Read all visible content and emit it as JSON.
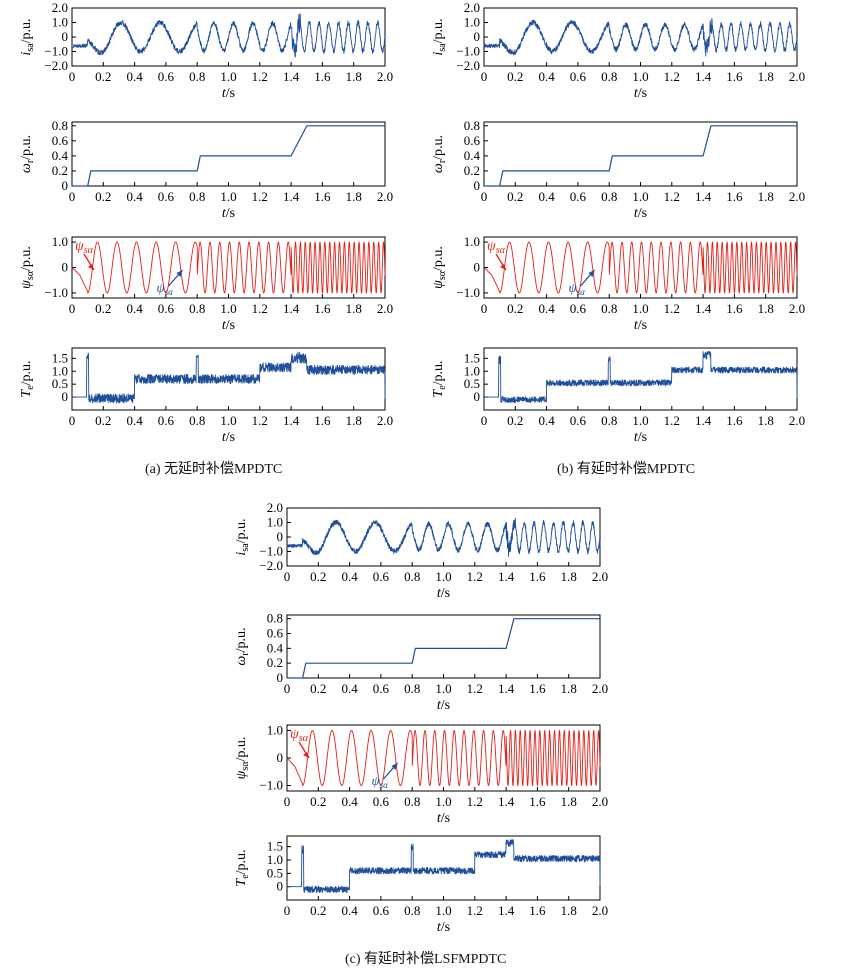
{
  "figure": {
    "captions": {
      "a": "(a) 无延时补偿MPDTC",
      "b": "(b) 有延时补偿MPDTC",
      "c": "(c) 有延时补偿LSFMPDTC"
    },
    "colors": {
      "blue": "#1f4e9b",
      "red": "#e32119",
      "axis": "#000000"
    }
  },
  "chart_data": [
    {
      "id": "a-isa",
      "group": "a",
      "type": "line",
      "xlabel": "t/s",
      "ylabel": "isa/p.u.",
      "xlim": [
        0,
        2.0
      ],
      "ylim": [
        -2.0,
        2.0
      ],
      "xticks": [
        "0",
        "0.2",
        "0.4",
        "0.6",
        "0.8",
        "1.0",
        "1.2",
        "1.4",
        "1.6",
        "1.8",
        "2.0"
      ],
      "yticks": [
        "2.0",
        "1.0",
        "0",
        "−1.0",
        "−2.0"
      ],
      "series": [
        {
          "kind": "current",
          "color": "#1f4e9b",
          "segments": [
            [
              0,
              0.1,
              0,
              0
            ],
            [
              0.1,
              0.8,
              4,
              0.9
            ],
            [
              0.8,
              1.4,
              8,
              0.95
            ],
            [
              1.4,
              2.0,
              16,
              1.0
            ]
          ],
          "offset": -0.6
        }
      ]
    },
    {
      "id": "a-wr",
      "group": "a",
      "type": "line",
      "xlabel": "t/s",
      "ylabel": "ωr/p.u.",
      "xlim": [
        0,
        2.0
      ],
      "ylim": [
        0,
        0.85
      ],
      "xticks": [
        "0",
        "0.2",
        "0.4",
        "0.6",
        "0.8",
        "1.0",
        "1.2",
        "1.4",
        "1.6",
        "1.8",
        "2.0"
      ],
      "yticks": [
        "0.8",
        "0.6",
        "0.4",
        "0.2",
        "0"
      ],
      "series": [
        {
          "kind": "speed",
          "color": "#1f4e9b",
          "points": [
            [
              0,
              0
            ],
            [
              0.1,
              0
            ],
            [
              0.12,
              0.2
            ],
            [
              0.8,
              0.2
            ],
            [
              0.82,
              0.4
            ],
            [
              1.4,
              0.4
            ],
            [
              1.5,
              0.8
            ],
            [
              2.0,
              0.8
            ]
          ]
        }
      ]
    },
    {
      "id": "a-psi",
      "group": "a",
      "type": "line",
      "xlabel": "t/s",
      "ylabel": "ψsα/p.u.",
      "xlim": [
        0,
        2.0
      ],
      "ylim": [
        -1.2,
        1.2
      ],
      "xticks": [
        "0",
        "0.2",
        "0.4",
        "0.6",
        "0.8",
        "1.0",
        "1.2",
        "1.4",
        "1.6",
        "1.8",
        "2.0"
      ],
      "yticks": [
        "1.0",
        "0",
        "−1.0"
      ],
      "annotations": [
        "ψsα",
        "ψsα"
      ],
      "series": [
        {
          "kind": "flux",
          "color": "#e32119",
          "segments": [
            [
              0.1,
              0.8,
              8
            ],
            [
              0.8,
              1.4,
              16
            ],
            [
              1.4,
              2.0,
              32
            ]
          ]
        }
      ]
    },
    {
      "id": "a-te",
      "group": "a",
      "type": "line",
      "xlabel": "t/s",
      "ylabel": "Te/p.u.",
      "xlim": [
        0,
        2.0
      ],
      "ylim": [
        -0.5,
        1.9
      ],
      "xticks": [
        "0",
        "0.2",
        "0.4",
        "0.6",
        "0.8",
        "1.0",
        "1.2",
        "1.4",
        "1.6",
        "1.8",
        "2.0"
      ],
      "yticks": [
        "1.5",
        "1.0",
        "0.5",
        "0"
      ],
      "series": [
        {
          "kind": "torque",
          "color": "#1f4e9b",
          "levels": [
            [
              0,
              0.1,
              0
            ],
            [
              0.1,
              0.4,
              -0.05
            ],
            [
              0.4,
              1.2,
              0.7
            ],
            [
              1.2,
              1.4,
              1.15
            ],
            [
              1.4,
              1.5,
              1.5
            ],
            [
              1.5,
              2.0,
              1.05
            ]
          ],
          "noise": 0.18,
          "spikes": [
            [
              0.1,
              1.75
            ],
            [
              0.8,
              1.75
            ],
            [
              1.45,
              1.75
            ]
          ]
        }
      ]
    },
    {
      "id": "b-isa",
      "group": "b",
      "type": "line",
      "xlabel": "t/s",
      "ylabel": "isa/p.u.",
      "xlim": [
        0,
        2.0
      ],
      "ylim": [
        -2.0,
        2.0
      ],
      "xticks": [
        "0",
        "0.2",
        "0.4",
        "0.6",
        "0.8",
        "1.0",
        "1.2",
        "1.4",
        "1.6",
        "1.8",
        "2.0"
      ],
      "yticks": [
        "2.0",
        "1.0",
        "0",
        "−1.0",
        "−2.0"
      ],
      "series": [
        {
          "kind": "current",
          "color": "#1f4e9b",
          "segments": [
            [
              0,
              0.1,
              0,
              0
            ],
            [
              0.1,
              0.8,
              4,
              0.8
            ],
            [
              0.8,
              1.4,
              8,
              0.85
            ],
            [
              1.4,
              2.0,
              16,
              0.9
            ]
          ],
          "offset": -0.6
        }
      ]
    },
    {
      "id": "b-wr",
      "group": "b",
      "type": "line",
      "xlabel": "t/s",
      "ylabel": "ωr/p.u.",
      "xlim": [
        0,
        2.0
      ],
      "ylim": [
        0,
        0.85
      ],
      "xticks": [
        "0",
        "0.2",
        "0.4",
        "0.6",
        "0.8",
        "1.0",
        "1.2",
        "1.4",
        "1.6",
        "1.8",
        "2.0"
      ],
      "yticks": [
        "0.8",
        "0.6",
        "0.4",
        "0.2",
        "0"
      ],
      "series": [
        {
          "kind": "speed",
          "color": "#1f4e9b",
          "points": [
            [
              0,
              0
            ],
            [
              0.1,
              0
            ],
            [
              0.12,
              0.2
            ],
            [
              0.8,
              0.2
            ],
            [
              0.82,
              0.4
            ],
            [
              1.4,
              0.4
            ],
            [
              1.45,
              0.8
            ],
            [
              2.0,
              0.8
            ]
          ]
        }
      ]
    },
    {
      "id": "b-psi",
      "group": "b",
      "type": "line",
      "xlabel": "t/s",
      "ylabel": "ψsα/p.u.",
      "xlim": [
        0,
        2.0
      ],
      "ylim": [
        -1.2,
        1.2
      ],
      "xticks": [
        "0",
        "0.2",
        "0.4",
        "0.6",
        "0.8",
        "1.0",
        "1.2",
        "1.4",
        "1.6",
        "1.8",
        "2.0"
      ],
      "yticks": [
        "1.0",
        "0",
        "−1.0"
      ],
      "annotations": [
        "ψsα",
        "ψsα"
      ],
      "series": [
        {
          "kind": "flux",
          "color": "#e32119",
          "segments": [
            [
              0.1,
              0.8,
              8
            ],
            [
              0.8,
              1.4,
              16
            ],
            [
              1.4,
              2.0,
              32
            ]
          ]
        }
      ]
    },
    {
      "id": "b-te",
      "group": "b",
      "type": "line",
      "xlabel": "t/s",
      "ylabel": "Te/p.u.",
      "xlim": [
        0,
        2.0
      ],
      "ylim": [
        -0.5,
        1.9
      ],
      "xticks": [
        "0",
        "0.2",
        "0.4",
        "0.6",
        "0.8",
        "1.0",
        "1.2",
        "1.4",
        "1.6",
        "1.8",
        "2.0"
      ],
      "yticks": [
        "1.5",
        "1.0",
        "0.5",
        "0"
      ],
      "series": [
        {
          "kind": "torque",
          "color": "#1f4e9b",
          "levels": [
            [
              0,
              0.1,
              0
            ],
            [
              0.1,
              0.4,
              -0.1
            ],
            [
              0.4,
              1.2,
              0.55
            ],
            [
              1.2,
              1.4,
              1.05
            ],
            [
              1.4,
              1.45,
              1.65
            ],
            [
              1.45,
              2.0,
              1.05
            ]
          ],
          "noise": 0.12,
          "spikes": [
            [
              0.1,
              1.6
            ],
            [
              0.8,
              1.6
            ],
            [
              1.42,
              1.75
            ]
          ]
        }
      ]
    },
    {
      "id": "c-isa",
      "group": "c",
      "type": "line",
      "xlabel": "t/s",
      "ylabel": "isa/p.u.",
      "xlim": [
        0,
        2.0
      ],
      "ylim": [
        -2.0,
        2.0
      ],
      "xticks": [
        "0",
        "0.2",
        "0.4",
        "0.6",
        "0.8",
        "1.0",
        "1.2",
        "1.4",
        "1.6",
        "1.8",
        "2.0"
      ],
      "yticks": [
        "2.0",
        "1.0",
        "0",
        "−1.0",
        "−2.0"
      ],
      "series": [
        {
          "kind": "current",
          "color": "#1f4e9b",
          "segments": [
            [
              0,
              0.1,
              0,
              0
            ],
            [
              0.1,
              0.8,
              4,
              0.8
            ],
            [
              0.8,
              1.4,
              8,
              0.9
            ],
            [
              1.4,
              2.0,
              16,
              1.0
            ]
          ],
          "offset": -0.6
        }
      ]
    },
    {
      "id": "c-wr",
      "group": "c",
      "type": "line",
      "xlabel": "t/s",
      "ylabel": "ωr/p.u.",
      "xlim": [
        0,
        2.0
      ],
      "ylim": [
        0,
        0.85
      ],
      "xticks": [
        "0",
        "0.2",
        "0.4",
        "0.6",
        "0.8",
        "1.0",
        "1.2",
        "1.4",
        "1.6",
        "1.8",
        "2.0"
      ],
      "yticks": [
        "0.8",
        "0.6",
        "0.4",
        "0.2",
        "0"
      ],
      "series": [
        {
          "kind": "speed",
          "color": "#1f4e9b",
          "points": [
            [
              0,
              0
            ],
            [
              0.1,
              0
            ],
            [
              0.12,
              0.2
            ],
            [
              0.8,
              0.2
            ],
            [
              0.82,
              0.4
            ],
            [
              1.4,
              0.4
            ],
            [
              1.45,
              0.8
            ],
            [
              2.0,
              0.8
            ]
          ]
        }
      ]
    },
    {
      "id": "c-psi",
      "group": "c",
      "type": "line",
      "xlabel": "t/s",
      "ylabel": "ψsα/p.u.",
      "xlim": [
        0,
        2.0
      ],
      "ylim": [
        -1.2,
        1.2
      ],
      "xticks": [
        "0",
        "0.2",
        "0.4",
        "0.6",
        "0.8",
        "1.0",
        "1.2",
        "1.4",
        "1.6",
        "1.8",
        "2.0"
      ],
      "yticks": [
        "1.0",
        "0",
        "−1.0"
      ],
      "annotations": [
        "ψsα",
        "ψsα"
      ],
      "series": [
        {
          "kind": "flux",
          "color": "#e32119",
          "segments": [
            [
              0.1,
              0.8,
              8
            ],
            [
              0.8,
              1.4,
              16
            ],
            [
              1.4,
              2.0,
              32
            ]
          ]
        }
      ]
    },
    {
      "id": "c-te",
      "group": "c",
      "type": "line",
      "xlabel": "t/s",
      "ylabel": "Te/p.u.",
      "xlim": [
        0,
        2.0
      ],
      "ylim": [
        -0.5,
        1.9
      ],
      "xticks": [
        "0",
        "0.2",
        "0.4",
        "0.6",
        "0.8",
        "1.0",
        "1.2",
        "1.4",
        "1.6",
        "1.8",
        "2.0"
      ],
      "yticks": [
        "1.5",
        "1.0",
        "0.5",
        "0"
      ],
      "series": [
        {
          "kind": "torque",
          "color": "#1f4e9b",
          "levels": [
            [
              0,
              0.1,
              0
            ],
            [
              0.1,
              0.4,
              -0.1
            ],
            [
              0.4,
              1.2,
              0.6
            ],
            [
              1.2,
              1.4,
              1.2
            ],
            [
              1.4,
              1.45,
              1.65
            ],
            [
              1.45,
              2.0,
              1.05
            ]
          ],
          "noise": 0.12,
          "spikes": [
            [
              0.1,
              1.55
            ],
            [
              0.8,
              1.6
            ],
            [
              1.42,
              1.8
            ]
          ]
        }
      ]
    }
  ]
}
